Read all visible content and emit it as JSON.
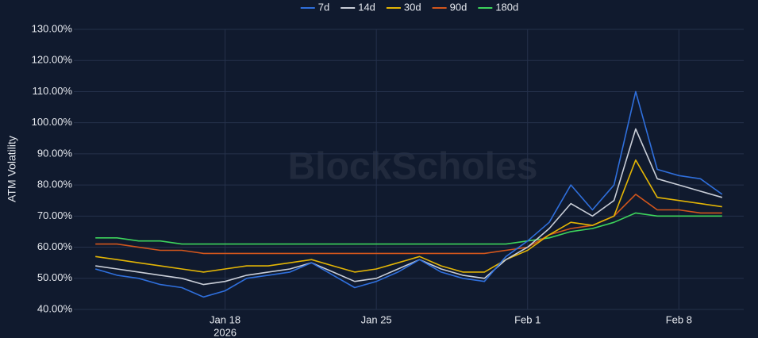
{
  "chart_data": {
    "type": "line",
    "y_label": "ATM Volatility",
    "watermark": "BlockScholes",
    "x": [
      "2026-01-12",
      "2026-01-13",
      "2026-01-14",
      "2026-01-15",
      "2026-01-16",
      "2026-01-17",
      "2026-01-18",
      "2026-01-19",
      "2026-01-20",
      "2026-01-21",
      "2026-01-22",
      "2026-01-23",
      "2026-01-24",
      "2026-01-25",
      "2026-01-26",
      "2026-01-27",
      "2026-01-28",
      "2026-01-29",
      "2026-01-30",
      "2026-01-31",
      "2026-02-01",
      "2026-02-02",
      "2026-02-03",
      "2026-02-04",
      "2026-02-05",
      "2026-02-06",
      "2026-02-07",
      "2026-02-08",
      "2026-02-09",
      "2026-02-10"
    ],
    "xlim": [
      "2026-01-11",
      "2026-02-11"
    ],
    "xticks": [
      {
        "value": "2026-01-18",
        "label": "Jan 18",
        "sublabel": "2026"
      },
      {
        "value": "2026-01-25",
        "label": "Jan 25"
      },
      {
        "value": "2026-02-01",
        "label": "Feb 1"
      },
      {
        "value": "2026-02-08",
        "label": "Feb 8"
      }
    ],
    "ylim": [
      40,
      130
    ],
    "yticks": [
      {
        "value": 40,
        "label": "40.00%"
      },
      {
        "value": 50,
        "label": "50.00%"
      },
      {
        "value": 60,
        "label": "60.00%"
      },
      {
        "value": 70,
        "label": "70.00%"
      },
      {
        "value": 80,
        "label": "80.00%"
      },
      {
        "value": 90,
        "label": "90.00%"
      },
      {
        "value": 100,
        "label": "100.00%"
      },
      {
        "value": 110,
        "label": "110.00%"
      },
      {
        "value": 120,
        "label": "120.00%"
      },
      {
        "value": 130,
        "label": "130.00%"
      }
    ],
    "grid": true,
    "legend": "top",
    "series": [
      {
        "name": "7d",
        "color": "#2f6fdc",
        "values": [
          53,
          51,
          50,
          48,
          47,
          44,
          46,
          50,
          51,
          52,
          55,
          51,
          47,
          49,
          52,
          56,
          52,
          50,
          49,
          57,
          62,
          68,
          80,
          72,
          80,
          110,
          85,
          83,
          82,
          77
        ]
      },
      {
        "name": "14d",
        "color": "#c9ced8",
        "values": [
          54,
          53,
          52,
          51,
          50,
          48,
          49,
          51,
          52,
          53,
          55,
          52,
          49,
          50,
          53,
          56,
          53,
          51,
          50,
          56,
          60,
          66,
          74,
          70,
          75,
          98,
          82,
          80,
          78,
          76
        ]
      },
      {
        "name": "30d",
        "color": "#e3b505",
        "values": [
          57,
          56,
          55,
          54,
          53,
          52,
          53,
          54,
          54,
          55,
          56,
          54,
          52,
          53,
          55,
          57,
          54,
          52,
          52,
          56,
          59,
          64,
          68,
          67,
          70,
          88,
          76,
          75,
          74,
          73
        ]
      },
      {
        "name": "90d",
        "color": "#d2561c",
        "values": [
          61,
          61,
          60,
          59,
          59,
          58,
          58,
          58,
          58,
          58,
          58,
          58,
          58,
          58,
          58,
          58,
          58,
          58,
          58,
          59,
          60,
          64,
          66,
          67,
          70,
          77,
          72,
          72,
          71,
          71
        ]
      },
      {
        "name": "180d",
        "color": "#3dd45c",
        "values": [
          63,
          63,
          62,
          62,
          61,
          61,
          61,
          61,
          61,
          61,
          61,
          61,
          61,
          61,
          61,
          61,
          61,
          61,
          61,
          61,
          62,
          63,
          65,
          66,
          68,
          71,
          70,
          70,
          70,
          70
        ]
      }
    ]
  }
}
